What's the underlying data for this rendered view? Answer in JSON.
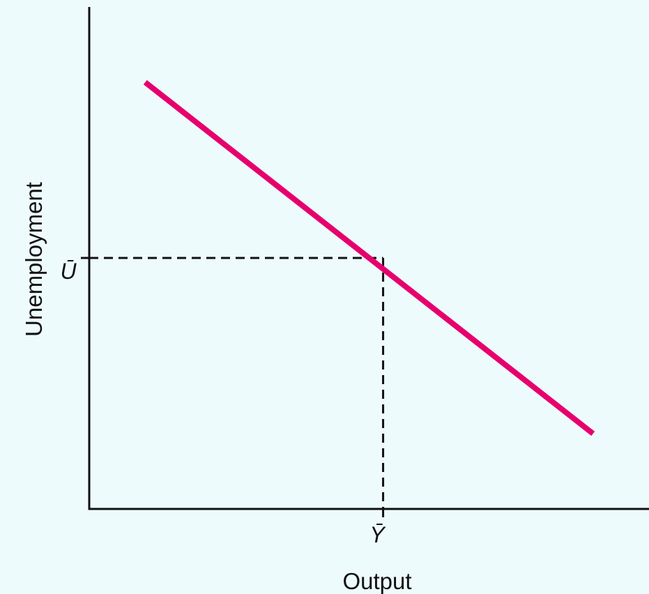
{
  "colors": {
    "background": "#eefbfd",
    "axis": "#111111",
    "curve": "#e6006e",
    "guide": "#111111"
  },
  "chart_data": {
    "type": "line",
    "title": "",
    "xlabel": "Output",
    "ylabel": "Unemployment",
    "xlim": [
      0,
      10
    ],
    "ylim": [
      0,
      10
    ],
    "grid": false,
    "legend": "none",
    "series": [
      {
        "x": [
          1,
          9
        ],
        "y": [
          8.5,
          1.5
        ]
      }
    ],
    "reference": {
      "x": 5.25,
      "y": 5.0,
      "x_label": "Ȳ",
      "y_label": "Ū",
      "style": "dashed"
    }
  }
}
